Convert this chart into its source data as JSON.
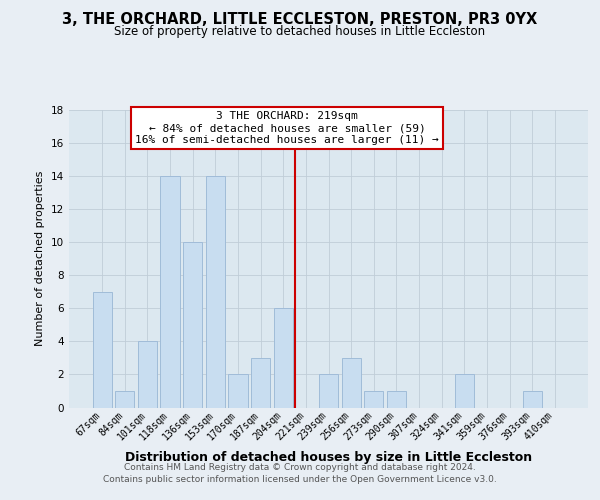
{
  "title": "3, THE ORCHARD, LITTLE ECCLESTON, PRESTON, PR3 0YX",
  "subtitle": "Size of property relative to detached houses in Little Eccleston",
  "xlabel": "Distribution of detached houses by size in Little Eccleston",
  "ylabel": "Number of detached properties",
  "footer_lines": [
    "Contains HM Land Registry data © Crown copyright and database right 2024.",
    "Contains public sector information licensed under the Open Government Licence v3.0."
  ],
  "bin_labels": [
    "67sqm",
    "84sqm",
    "101sqm",
    "118sqm",
    "136sqm",
    "153sqm",
    "170sqm",
    "187sqm",
    "204sqm",
    "221sqm",
    "239sqm",
    "256sqm",
    "273sqm",
    "290sqm",
    "307sqm",
    "324sqm",
    "341sqm",
    "359sqm",
    "376sqm",
    "393sqm",
    "410sqm"
  ],
  "bar_values": [
    7,
    1,
    4,
    14,
    10,
    14,
    2,
    3,
    6,
    0,
    2,
    3,
    1,
    1,
    0,
    0,
    2,
    0,
    0,
    1,
    0
  ],
  "bar_color": "#c8ddf0",
  "bar_edge_color": "#a0bcd8",
  "reference_line_x_label": "221sqm",
  "reference_line_color": "#cc0000",
  "annotation_title": "3 THE ORCHARD: 219sqm",
  "annotation_line1": "← 84% of detached houses are smaller (59)",
  "annotation_line2": "16% of semi-detached houses are larger (11) →",
  "annotation_box_color": "#ffffff",
  "annotation_box_edge_color": "#cc0000",
  "ylim": [
    0,
    18
  ],
  "yticks": [
    0,
    2,
    4,
    6,
    8,
    10,
    12,
    14,
    16,
    18
  ],
  "background_color": "#e8eef4",
  "plot_bg_color": "#dce8f0",
  "grid_color": "#c0cdd8",
  "title_fontsize": 10.5,
  "subtitle_fontsize": 8.5,
  "xlabel_fontsize": 9,
  "ylabel_fontsize": 8,
  "tick_fontsize": 7,
  "footer_fontsize": 6.5,
  "annotation_fontsize": 8
}
